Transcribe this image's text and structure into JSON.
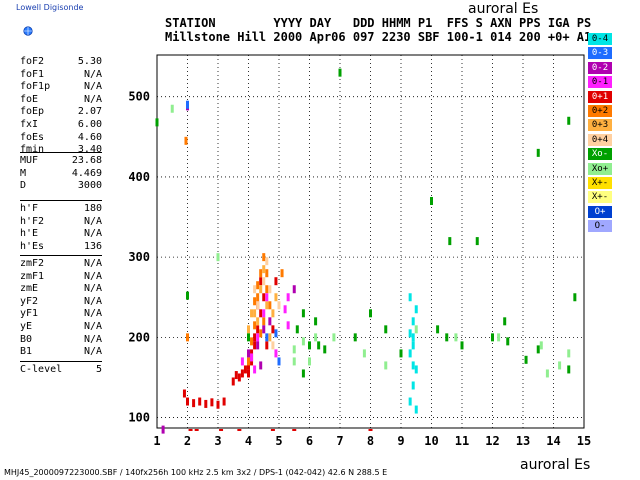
{
  "brand": "Lowell Digisonde",
  "header": {
    "labels": "STATION        YYYY DAY   DDD HHMM P1  FFS S AXN PPS IGA PS",
    "values": "Millstone Hill 2000 Apr06 097 2230 SBF 100-1 014 200 +0+ A1"
  },
  "plot_title": "auroral Es",
  "x_title": "auroral Es",
  "footer": "MHJ45_2000097223000.SBF / 140fx256h 100 kHz 2.5 km 3x2 / DPS-1 (042-042) 42.6 N 288.5 E",
  "params_group1": [
    {
      "name": "foF2",
      "value": "5.30"
    },
    {
      "name": "foF1",
      "value": "N/A"
    },
    {
      "name": "foF1p",
      "value": "N/A"
    },
    {
      "name": "foE",
      "value": "N/A"
    },
    {
      "name": "foEp",
      "value": "2.07"
    },
    {
      "name": "fxI",
      "value": "6.00"
    },
    {
      "name": "foEs",
      "value": "4.60"
    },
    {
      "name": "fmin",
      "value": "3.40"
    }
  ],
  "params_group2": [
    {
      "name": "MUF",
      "value": "23.68"
    },
    {
      "name": "M",
      "value": "4.469"
    },
    {
      "name": "D",
      "value": "3000"
    }
  ],
  "params_group3": [
    {
      "name": "h'F",
      "value": "180"
    },
    {
      "name": "h'F2",
      "value": "N/A"
    },
    {
      "name": "h'E",
      "value": "N/A"
    },
    {
      "name": "h'Es",
      "value": "136"
    }
  ],
  "params_group4": [
    {
      "name": "zmF2",
      "value": "N/A"
    },
    {
      "name": "zmF1",
      "value": "N/A"
    },
    {
      "name": "zmE",
      "value": "N/A"
    },
    {
      "name": "yF2",
      "value": "N/A"
    },
    {
      "name": "yF1",
      "value": "N/A"
    },
    {
      "name": "yE",
      "value": "N/A"
    },
    {
      "name": "B0",
      "value": "N/A"
    },
    {
      "name": "B1",
      "value": "N/A"
    }
  ],
  "params_group5": [
    {
      "name": "C-level",
      "value": "5"
    }
  ],
  "legend": [
    {
      "label": "0-4",
      "color": "#00e5e5"
    },
    {
      "label": "0-3",
      "color": "#1e6cff"
    },
    {
      "label": "0-2",
      "color": "#b000b0"
    },
    {
      "label": "0-1",
      "color": "#ff20ff"
    },
    {
      "label": "0+1",
      "color": "#e00000"
    },
    {
      "label": "0+2",
      "color": "#ff7a00"
    },
    {
      "label": "0+3",
      "color": "#ffb040"
    },
    {
      "label": "0+4",
      "color": "#ffd0a0"
    },
    {
      "label": "Xo-",
      "color": "#00a000"
    },
    {
      "label": "Xo+",
      "color": "#90ee90"
    },
    {
      "label": "X+-",
      "color": "#ffe000"
    },
    {
      "label": "X+-",
      "color": "#ffff80"
    },
    {
      "label": "O+",
      "color": "#0040d0"
    },
    {
      "label": "O-",
      "color": "#a0a8ff"
    }
  ],
  "chart_data": {
    "type": "scatter",
    "xlabel": "auroral Es",
    "ylabel": "",
    "xlim": [
      1,
      15
    ],
    "ylim": [
      87,
      552
    ],
    "x_ticks": [
      1,
      2,
      3,
      4,
      5,
      6,
      7,
      8,
      9,
      10,
      11,
      12,
      13,
      14,
      15
    ],
    "y_ticks": [
      100,
      200,
      300,
      400,
      500
    ],
    "grid": "dotted",
    "legend_position": "right",
    "series": [
      {
        "name": "0+1",
        "points": [
          [
            3.7,
            150
          ],
          [
            3.8,
            155
          ],
          [
            3.9,
            160
          ],
          [
            4.0,
            165
          ],
          [
            4.1,
            170
          ],
          [
            4.2,
            190
          ],
          [
            4.3,
            210
          ],
          [
            4.4,
            230
          ],
          [
            4.5,
            250
          ],
          [
            4.4,
            270
          ],
          [
            4.3,
            240
          ],
          [
            4.2,
            200
          ],
          [
            4.1,
            180
          ],
          [
            4.0,
            155
          ],
          [
            2.0,
            120
          ],
          [
            2.2,
            118
          ],
          [
            2.4,
            120
          ],
          [
            2.6,
            117
          ],
          [
            2.8,
            119
          ],
          [
            3.0,
            116
          ],
          [
            3.2,
            120
          ],
          [
            1.9,
            130
          ],
          [
            4.9,
            270
          ],
          [
            3.6,
            153
          ],
          [
            3.5,
            145
          ],
          [
            4.6,
            190
          ],
          [
            4.8,
            210
          ]
        ]
      },
      {
        "name": "0+2",
        "points": [
          [
            4.0,
            170
          ],
          [
            4.2,
            215
          ],
          [
            4.3,
            250
          ],
          [
            4.4,
            280
          ],
          [
            4.5,
            300
          ],
          [
            4.6,
            260
          ],
          [
            4.5,
            220
          ],
          [
            4.7,
            240
          ],
          [
            4.1,
            195
          ],
          [
            4.3,
            265
          ],
          [
            4.6,
            280
          ],
          [
            4.4,
            205
          ],
          [
            1.95,
            445
          ],
          [
            2.0,
            200
          ],
          [
            5.1,
            280
          ],
          [
            4.2,
            245
          ]
        ]
      },
      {
        "name": "0+3",
        "points": [
          [
            4.2,
            230
          ],
          [
            4.4,
            260
          ],
          [
            4.5,
            285
          ],
          [
            4.3,
            220
          ],
          [
            4.6,
            240
          ],
          [
            4.8,
            230
          ],
          [
            4.7,
            200
          ],
          [
            4.0,
            210
          ],
          [
            4.9,
            250
          ],
          [
            4.1,
            230
          ]
        ]
      },
      {
        "name": "0+4",
        "points": [
          [
            4.3,
            240
          ],
          [
            4.5,
            270
          ],
          [
            4.6,
            295
          ],
          [
            4.7,
            260
          ],
          [
            5.0,
            240
          ],
          [
            4.2,
            260
          ],
          [
            4.8,
            190
          ]
        ]
      },
      {
        "name": "0-1",
        "points": [
          [
            4.1,
            175
          ],
          [
            4.3,
            200
          ],
          [
            4.5,
            230
          ],
          [
            4.6,
            250
          ],
          [
            4.2,
            160
          ],
          [
            5.2,
            235
          ],
          [
            5.3,
            215
          ],
          [
            4.9,
            180
          ],
          [
            3.8,
            170
          ],
          [
            5.3,
            250
          ]
        ]
      },
      {
        "name": "0-2",
        "points": [
          [
            4.0,
            180
          ],
          [
            4.3,
            190
          ],
          [
            4.5,
            210
          ],
          [
            4.7,
            220
          ],
          [
            4.4,
            165
          ],
          [
            5.5,
            260
          ],
          [
            1.2,
            85
          ],
          [
            2.0,
            488
          ]
        ]
      },
      {
        "name": "0-3",
        "points": [
          [
            4.6,
            200
          ],
          [
            4.9,
            205
          ],
          [
            5.0,
            170
          ],
          [
            2.0,
            490
          ]
        ]
      },
      {
        "name": "0-4",
        "points": [
          [
            9.3,
            250
          ],
          [
            9.4,
            220
          ],
          [
            9.4,
            200
          ],
          [
            9.3,
            180
          ],
          [
            9.5,
            160
          ],
          [
            9.4,
            140
          ],
          [
            9.3,
            120
          ],
          [
            9.5,
            110
          ],
          [
            9.4,
            190
          ],
          [
            9.5,
            235
          ],
          [
            9.3,
            205
          ],
          [
            9.4,
            165
          ]
        ]
      },
      {
        "name": "Xo-",
        "points": [
          [
            5.6,
            210
          ],
          [
            5.8,
            230
          ],
          [
            6.0,
            190
          ],
          [
            6.2,
            220
          ],
          [
            6.5,
            185
          ],
          [
            7.5,
            200
          ],
          [
            8.0,
            230
          ],
          [
            8.5,
            210
          ],
          [
            9.0,
            180
          ],
          [
            10.2,
            210
          ],
          [
            10.5,
            200
          ],
          [
            11.0,
            190
          ],
          [
            12.0,
            200
          ],
          [
            12.5,
            195
          ],
          [
            13.5,
            185
          ],
          [
            14.5,
            160
          ],
          [
            14.7,
            250
          ],
          [
            2.0,
            252
          ],
          [
            1.0,
            468
          ],
          [
            7.0,
            530
          ],
          [
            10.0,
            370
          ],
          [
            10.6,
            320
          ],
          [
            11.5,
            320
          ],
          [
            14.5,
            470
          ],
          [
            4.0,
            200
          ],
          [
            5.8,
            155
          ],
          [
            6.3,
            190
          ],
          [
            13.1,
            172
          ],
          [
            13.5,
            430
          ],
          [
            12.4,
            220
          ]
        ]
      },
      {
        "name": "Xo+",
        "points": [
          [
            5.5,
            185
          ],
          [
            5.8,
            195
          ],
          [
            6.2,
            200
          ],
          [
            6.8,
            200
          ],
          [
            7.8,
            180
          ],
          [
            9.5,
            210
          ],
          [
            10.8,
            200
          ],
          [
            12.2,
            200
          ],
          [
            13.8,
            155
          ],
          [
            14.2,
            165
          ],
          [
            1.5,
            485
          ],
          [
            3.0,
            300
          ],
          [
            5.5,
            170
          ],
          [
            6.0,
            170
          ],
          [
            8.5,
            165
          ],
          [
            13.6,
            190
          ],
          [
            14.5,
            180
          ]
        ]
      }
    ]
  }
}
